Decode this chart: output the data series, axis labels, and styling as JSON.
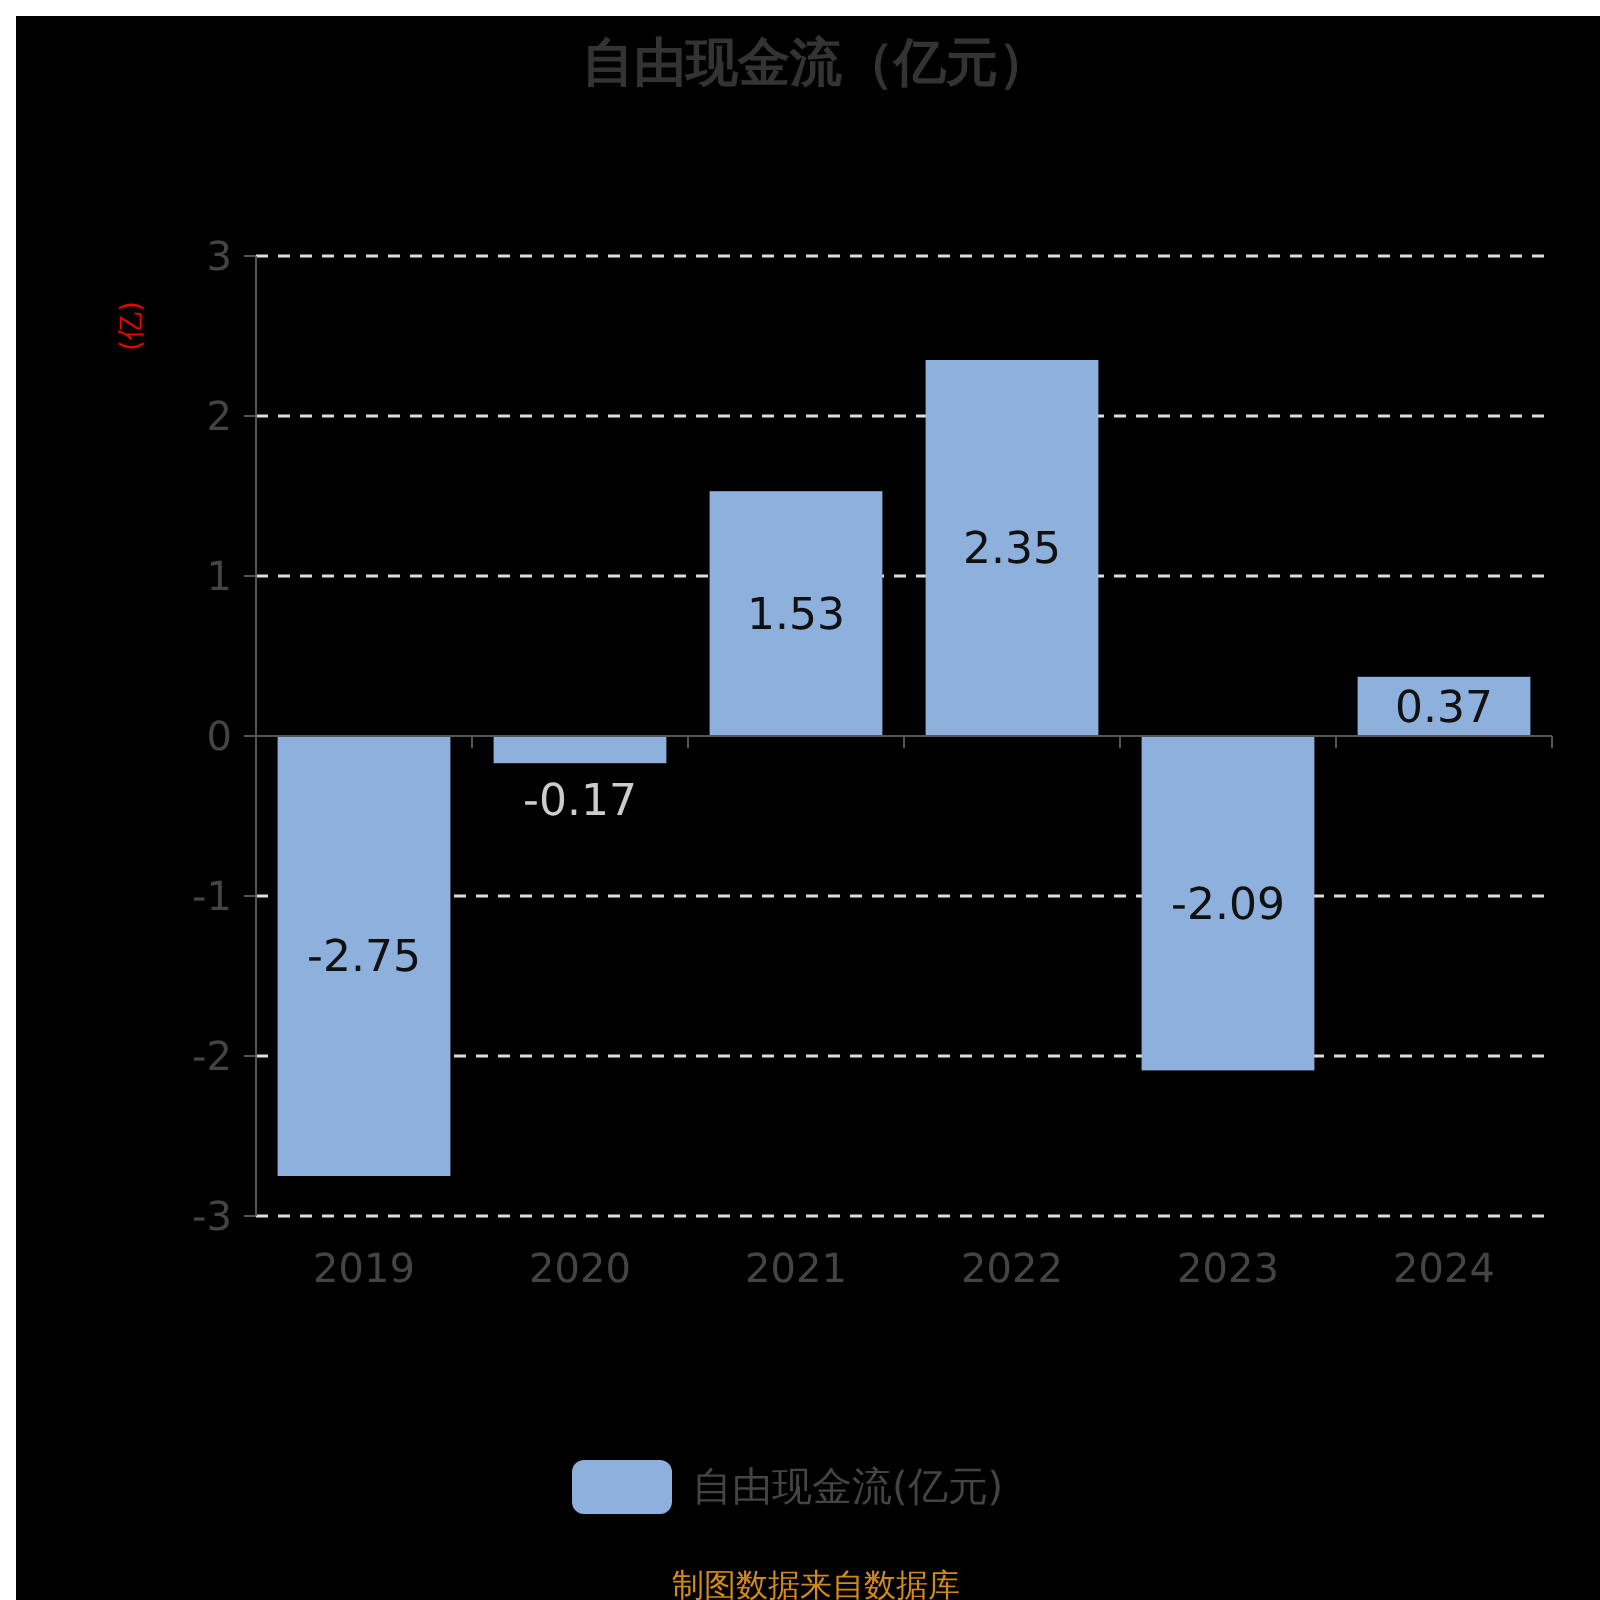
{
  "chart_data": {
    "type": "bar",
    "title": "自由现金流（亿元）",
    "ylabel": "(亿)",
    "categories": [
      "2019",
      "2020",
      "2021",
      "2022",
      "2023",
      "2024"
    ],
    "series": [
      {
        "name": "自由现金流(亿元)",
        "color": "#8eb0dc",
        "values": [
          -2.75,
          -0.17,
          1.53,
          2.35,
          -2.09,
          0.37
        ]
      }
    ],
    "ylim": [
      -3,
      3
    ],
    "yticks": [
      -3,
      -2,
      -1,
      0,
      1,
      2,
      3
    ],
    "grid": "y",
    "legend": "bottom",
    "data_labels": true,
    "annotations": [
      "制图数据来自数据库"
    ]
  }
}
